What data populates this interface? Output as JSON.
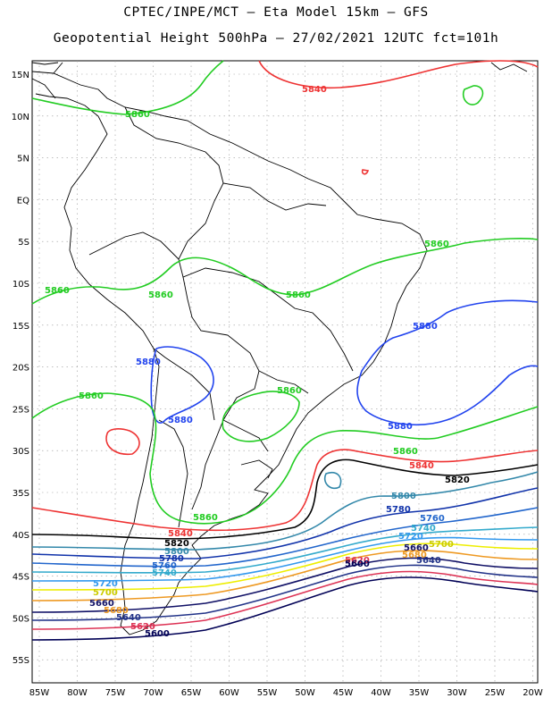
{
  "header": {
    "line1": "CPTEC/INPE/MCT –  Eta Model 15km – GFS",
    "line2": "Geopotential Height 500hPa – 27/02/2021 12UTC fct=101h"
  },
  "axes": {
    "lat_labels": [
      "15N",
      "10N",
      "5N",
      "EQ",
      "5S",
      "10S",
      "15S",
      "20S",
      "25S",
      "30S",
      "35S",
      "40S",
      "45S",
      "50S",
      "55S"
    ],
    "lon_labels": [
      "85W",
      "80W",
      "75W",
      "70W",
      "65W",
      "60W",
      "55W",
      "50W",
      "45W",
      "40W",
      "35W",
      "30W",
      "25W",
      "20W"
    ]
  },
  "colors": {
    "c5860": "#22cc22",
    "c5880": "#2244ee",
    "c5840": "#ee3333",
    "c5820": "#000000",
    "c5800": "#3388aa",
    "c5780": "#1133aa",
    "c5760": "#2266cc",
    "c5740": "#33aacc",
    "c5720": "#3399ee",
    "c5700": "#eeee00",
    "c5680": "#ee9922",
    "c5660": "#111166",
    "c5640": "#223388",
    "c5620": "#dd3355",
    "c5600": "#000055"
  },
  "contour_labels": [
    {
      "text": "5840",
      "c": "c5840"
    },
    {
      "text": "5860",
      "c": "c5860"
    },
    {
      "text": "5860",
      "c": "c5860"
    },
    {
      "text": "5860",
      "c": "c5860"
    },
    {
      "text": "5860",
      "c": "c5860"
    },
    {
      "text": "5860",
      "c": "c5860"
    },
    {
      "text": "5880",
      "c": "c5880"
    },
    {
      "text": "5880",
      "c": "c5880"
    },
    {
      "text": "5860",
      "c": "c5860"
    },
    {
      "text": "5860",
      "c": "c5860"
    },
    {
      "text": "5880",
      "c": "c5880"
    },
    {
      "text": "5880",
      "c": "c5880"
    },
    {
      "text": "5860",
      "c": "c5860"
    },
    {
      "text": "5840",
      "c": "c5840"
    },
    {
      "text": "5820",
      "c": "c5820"
    },
    {
      "text": "5800",
      "c": "c5800"
    },
    {
      "text": "5780",
      "c": "c5780"
    },
    {
      "text": "5760",
      "c": "c5760"
    },
    {
      "text": "5740",
      "c": "c5740"
    },
    {
      "text": "5720",
      "c": "c5720"
    },
    {
      "text": "5700",
      "c": "c5700"
    },
    {
      "text": "5680",
      "c": "c5680"
    },
    {
      "text": "5660",
      "c": "c5660"
    },
    {
      "text": "5640",
      "c": "c5640"
    },
    {
      "text": "5620",
      "c": "c5620"
    },
    {
      "text": "5600",
      "c": "c5600"
    },
    {
      "text": "5860",
      "c": "c5860"
    },
    {
      "text": "5840",
      "c": "c5840"
    },
    {
      "text": "5820",
      "c": "c5820"
    },
    {
      "text": "5800",
      "c": "c5800"
    },
    {
      "text": "5780",
      "c": "c5780"
    },
    {
      "text": "5760",
      "c": "c5760"
    },
    {
      "text": "5740",
      "c": "c5740"
    },
    {
      "text": "5720",
      "c": "c5720"
    },
    {
      "text": "5700",
      "c": "c5700"
    },
    {
      "text": "5680",
      "c": "c5680"
    },
    {
      "text": "5660",
      "c": "c5660"
    },
    {
      "text": "5640",
      "c": "c5640"
    },
    {
      "text": "5620",
      "c": "c5620"
    },
    {
      "text": "5600",
      "c": "c5600"
    }
  ]
}
